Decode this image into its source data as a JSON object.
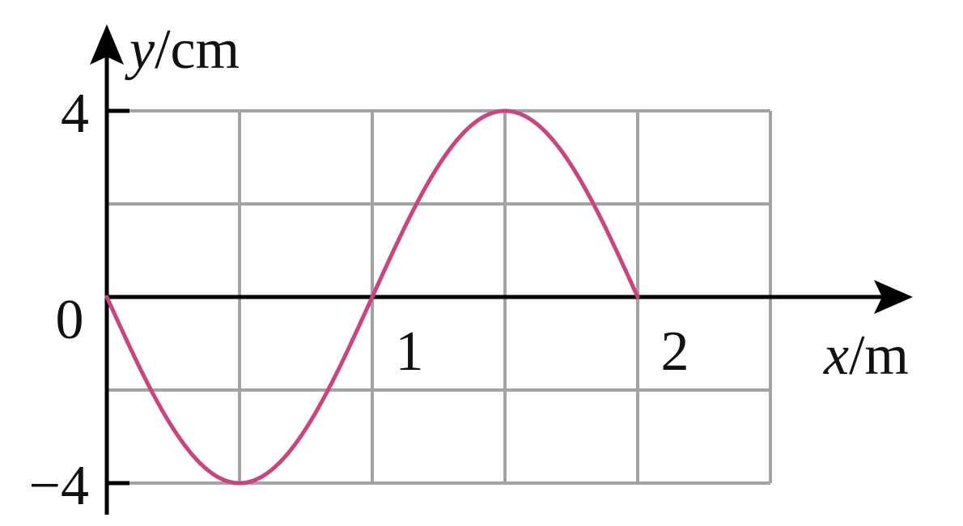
{
  "chart_data": {
    "type": "line",
    "xlabel": {
      "var": "x",
      "unit": "/m"
    },
    "ylabel": {
      "var": "y",
      "unit": "/cm"
    },
    "x_ticks": [
      {
        "value": 1,
        "label": "1"
      },
      {
        "value": 2,
        "label": "2"
      }
    ],
    "y_ticks": [
      {
        "value": 4,
        "label": "4"
      },
      {
        "value": -4,
        "label": "−4"
      }
    ],
    "origin_label": "0",
    "xlim": [
      0,
      2.5
    ],
    "ylim": [
      -4,
      4
    ],
    "grid": true,
    "grid_x_step": 0.5,
    "grid_y_values": [
      -4,
      -2,
      2,
      4
    ],
    "series": [
      {
        "function": "sine",
        "amplitude": 4,
        "wavelength": 2,
        "sign": -1,
        "x_range": [
          0,
          2
        ]
      }
    ],
    "colors": {
      "curve": "#c9457f",
      "grid": "#a3a3a3",
      "axis": "#000000"
    }
  }
}
